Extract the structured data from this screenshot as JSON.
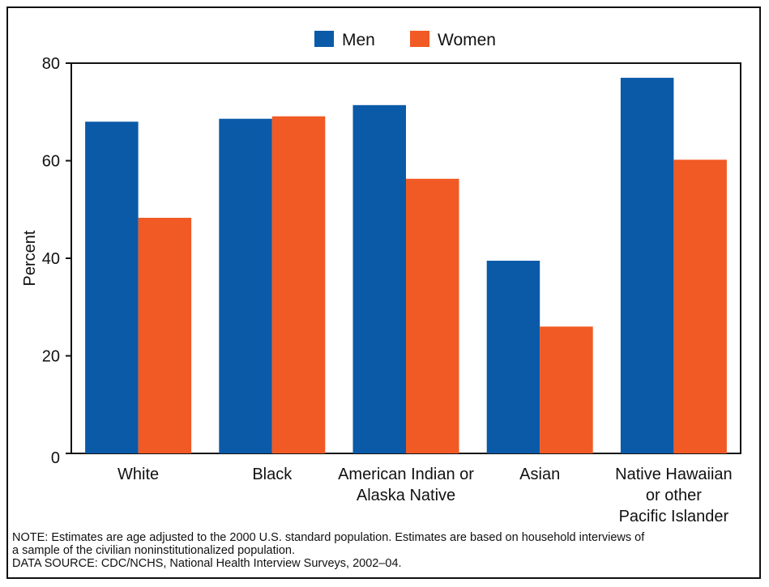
{
  "chart_data": {
    "type": "bar",
    "categories": [
      [
        "White"
      ],
      [
        "Black"
      ],
      [
        "American Indian or",
        "Alaska Native"
      ],
      [
        "Asian"
      ],
      [
        "Native Hawaiian",
        "or other",
        "Pacific Islander"
      ]
    ],
    "series": [
      {
        "name": "Men",
        "color": "#0a5aa8",
        "values": [
          68,
          68.6,
          71.4,
          39.5,
          77
        ]
      },
      {
        "name": "Women",
        "color": "#f15a24",
        "values": [
          48.3,
          69.1,
          56.3,
          26,
          60.2
        ]
      }
    ],
    "ylabel": "Percent",
    "ylim": [
      0,
      80
    ],
    "yticks": [
      0,
      20,
      40,
      60,
      80
    ],
    "legend_position": "top-center",
    "grid": false
  },
  "footnote": {
    "note_line1": "NOTE: Estimates are age adjusted to the 2000 U.S. standard population. Estimates are based on household interviews of",
    "note_line2": "a sample of the civilian noninstitutionalized population.",
    "source": "DATA SOURCE: CDC/NCHS, National Health Interview Surveys, 2002–04."
  }
}
